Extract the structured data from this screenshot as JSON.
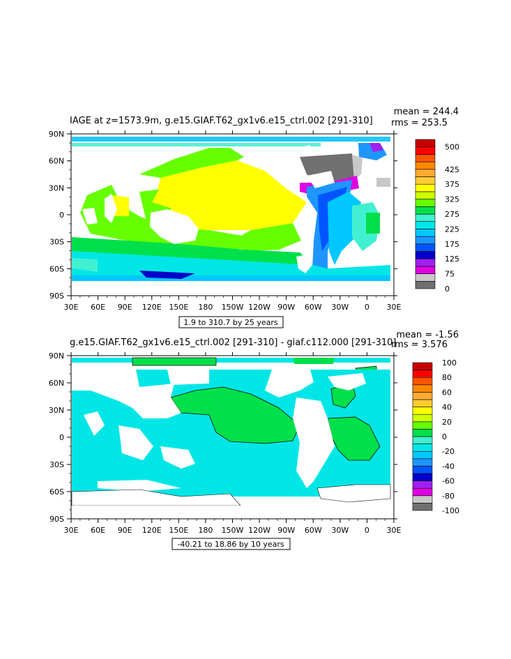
{
  "chart_data": [
    {
      "type": "heatmap",
      "title": "IAGE at z=1573.9m, g.e15.GIAF.T62_gx1v6.e15_ctrl.002 [291-310]",
      "stats": {
        "mean": "mean = 244.4",
        "rms": "rms = 253.5"
      },
      "range_note": "1.9 to 310.7 by 25 years",
      "x_ticks": [
        "30E",
        "60E",
        "90E",
        "120E",
        "150E",
        "180",
        "150W",
        "120W",
        "90W",
        "60W",
        "30W",
        "0",
        "30E"
      ],
      "y_ticks": [
        "90N",
        "60N",
        "30N",
        "0",
        "30S",
        "60S",
        "90S"
      ],
      "colorbar": {
        "colors": [
          "#707070",
          "#c8c8c8",
          "#e000e0",
          "#a020f0",
          "#0000c8",
          "#0055ff",
          "#1e96ff",
          "#00c8ff",
          "#00e6e6",
          "#40f0d0",
          "#00e04a",
          "#66ff00",
          "#ccff00",
          "#ffff00",
          "#ffcc33",
          "#ffaa33",
          "#ff8800",
          "#ff5500",
          "#ff0000",
          "#c80000"
        ],
        "labels": [
          "0",
          "75",
          "125",
          "175",
          "225",
          "275",
          "325",
          "375",
          "425",
          "500"
        ],
        "label_slots": [
          0,
          2,
          4,
          6,
          8,
          10,
          12,
          14,
          16,
          19
        ]
      }
    },
    {
      "type": "heatmap",
      "title": "g.e15.GIAF.T62_gx1v6.e15_ctrl.002 [291-310] - giaf.c112.000 [291-310]",
      "stats": {
        "mean": "mean = -1.56",
        "rms": "rms = 3.576"
      },
      "range_note": "-40.21 to 18.86 by 10 years",
      "x_ticks": [
        "30E",
        "60E",
        "90E",
        "120E",
        "150E",
        "180",
        "150W",
        "120W",
        "90W",
        "60W",
        "30W",
        "0",
        "30E"
      ],
      "y_ticks": [
        "90N",
        "60N",
        "30N",
        "0",
        "30S",
        "60S",
        "90S"
      ],
      "colorbar": {
        "colors": [
          "#707070",
          "#c8c8c8",
          "#e000e0",
          "#a020f0",
          "#0000c8",
          "#0055ff",
          "#1e96ff",
          "#00c8ff",
          "#00e6e6",
          "#40f0d0",
          "#00e04a",
          "#66ff00",
          "#ccff00",
          "#ffff00",
          "#ffcc33",
          "#ffaa33",
          "#ff8800",
          "#ff5500",
          "#ff0000",
          "#c80000"
        ],
        "labels": [
          "-100",
          "-80",
          "-60",
          "-40",
          "-20",
          "0",
          "20",
          "40",
          "60",
          "80",
          "100"
        ],
        "label_slots": [
          0,
          2,
          4,
          6,
          8,
          10,
          12,
          14,
          16,
          18,
          20
        ]
      }
    }
  ]
}
